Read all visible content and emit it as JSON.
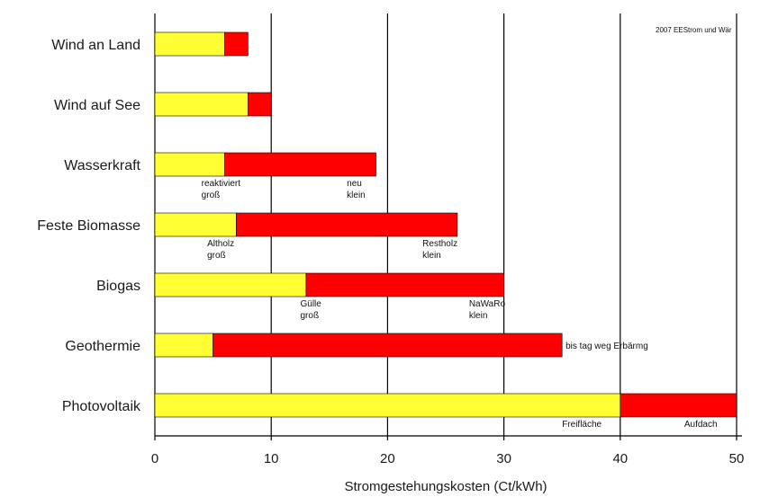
{
  "chart_data": {
    "type": "bar",
    "orientation": "horizontal",
    "stacked": true,
    "corner_note": "2007 EEStrom und Wär",
    "xlabel": "Stromgestehungskosten (Ct/kWh)",
    "ylabel": "",
    "title": "",
    "xlim": [
      0,
      50
    ],
    "xticks": [
      0,
      10,
      20,
      30,
      40,
      50
    ],
    "grid": "vertical",
    "categories": [
      "Wind an Land",
      "Wind auf See",
      "Wasserkraft",
      "Feste Biomasse",
      "Biogas",
      "Geothermie",
      "Photovoltaik"
    ],
    "series": [
      {
        "color": "#ffff33",
        "values": [
          6,
          8,
          6,
          7,
          13,
          5,
          40
        ]
      },
      {
        "color": "#ff0000",
        "values": [
          2,
          2,
          13,
          19,
          17,
          30,
          10
        ]
      }
    ],
    "annotations": [
      {
        "category": "Wasserkraft",
        "x": 4,
        "lines": [
          "reaktiviert",
          "groß"
        ]
      },
      {
        "category": "Wasserkraft",
        "x": 16.5,
        "lines": [
          "neu",
          "klein"
        ]
      },
      {
        "category": "Feste Biomasse",
        "x": 4.5,
        "lines": [
          "Altholz",
          "groß"
        ]
      },
      {
        "category": "Feste Biomasse",
        "x": 23,
        "lines": [
          "Restholz",
          "klein"
        ]
      },
      {
        "category": "Biogas",
        "x": 12.5,
        "lines": [
          "Gülle",
          "groß"
        ]
      },
      {
        "category": "Biogas",
        "x": 27,
        "lines": [
          "NaWaRo",
          "klein"
        ]
      },
      {
        "category": "Geothermie",
        "x": 35.3,
        "lines": [
          "bis tag weg Erbärmg"
        ],
        "position": "right"
      },
      {
        "category": "Photovoltaik",
        "x": 35,
        "lines": [
          "Freifläche"
        ]
      },
      {
        "category": "Photovoltaik",
        "x": 45.5,
        "lines": [
          "Aufdach"
        ]
      }
    ]
  }
}
